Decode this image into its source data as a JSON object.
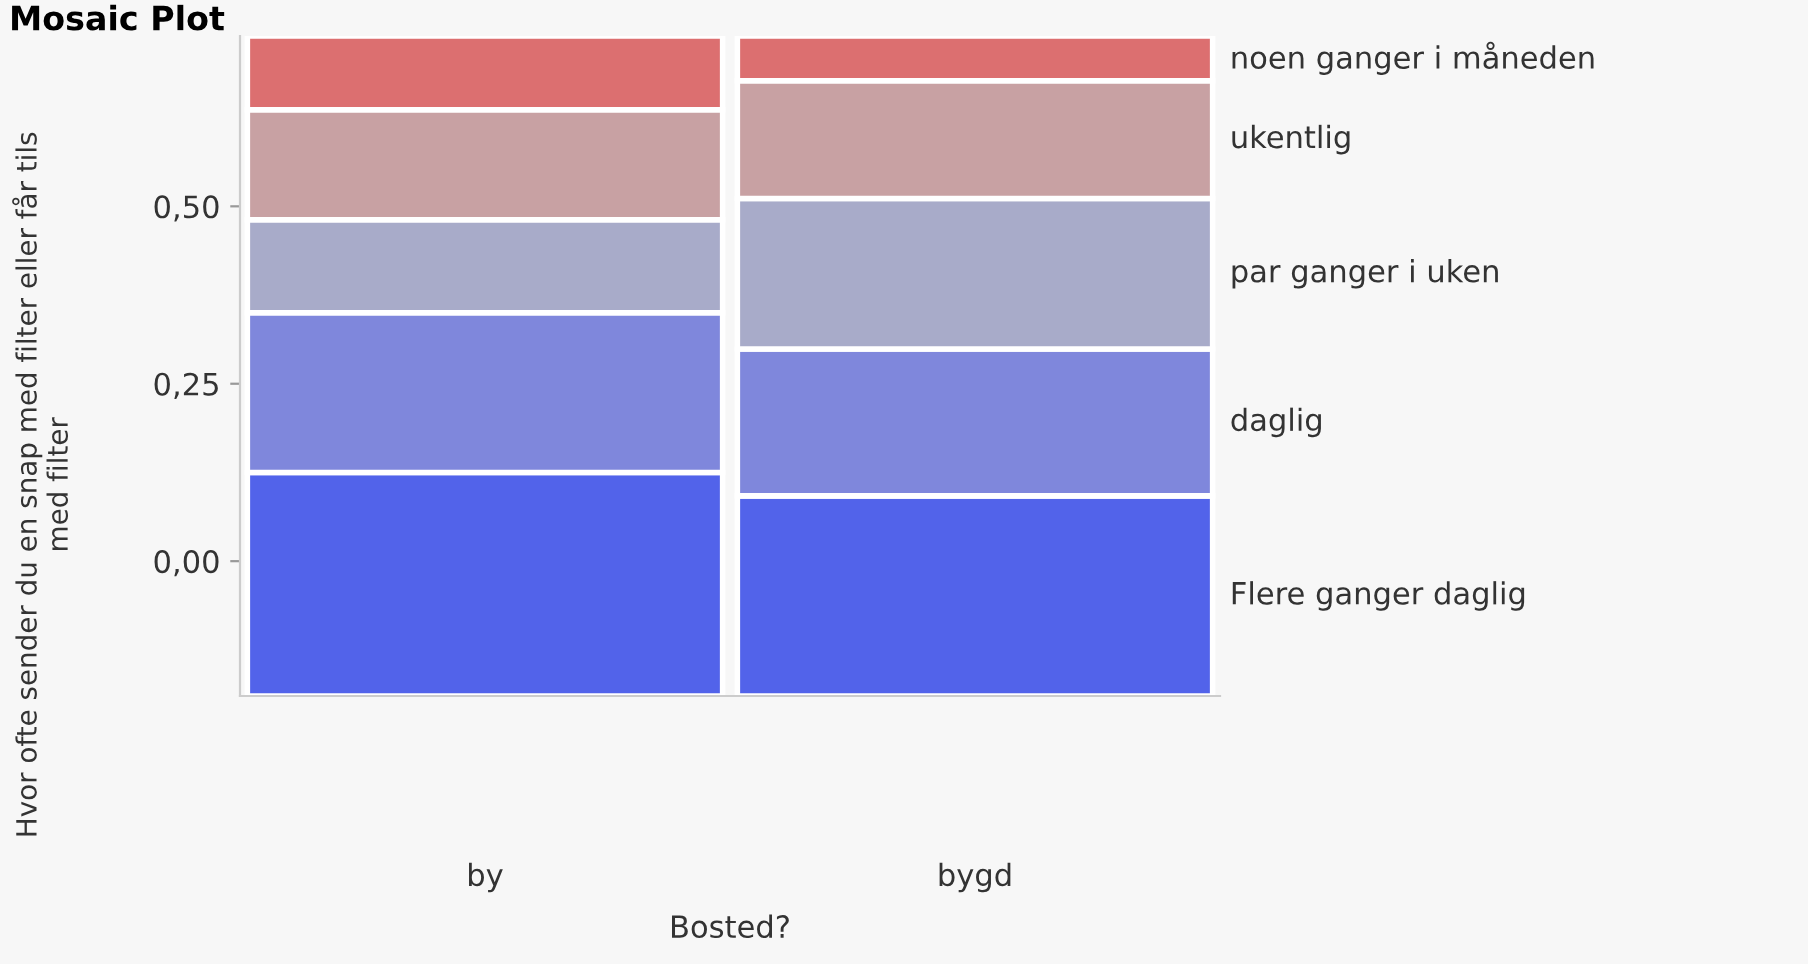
{
  "chart_data": {
    "type": "bar",
    "title": "Mosaic Plot",
    "xlabel": "Bosted?",
    "ylabel": "Hvor ofte sender du en snap med filter eller får tils\nmed filter",
    "categories": [
      "by",
      "bygd"
    ],
    "series": [
      {
        "name": "Flere ganger daglig",
        "color": "#5263ea",
        "base": [
          -0.19,
          -0.19
        ],
        "values": [
          0.315,
          0.282
        ]
      },
      {
        "name": "daglig",
        "color": "#7f87dc",
        "base": [
          0.125,
          0.092
        ],
        "values": [
          0.225,
          0.207
        ]
      },
      {
        "name": "par ganger i uken",
        "color": "#a8abc9",
        "base": [
          0.35,
          0.299
        ],
        "values": [
          0.131,
          0.212
        ]
      },
      {
        "name": "ukentlig",
        "color": "#c8a1a3",
        "base": [
          0.481,
          0.511
        ],
        "values": [
          0.155,
          0.166
        ]
      },
      {
        "name": "noen ganger i måneden",
        "color": "#dc6f70",
        "base": [
          0.636,
          0.677
        ],
        "values": [
          0.104,
          0.063
        ]
      }
    ],
    "ylim": [
      -0.19,
      0.74
    ],
    "yticks": [
      {
        "value": 0,
        "label": "0,00"
      },
      {
        "value": 0.25,
        "label": "0,25"
      },
      {
        "value": 0.5,
        "label": "0,50"
      }
    ],
    "grid": false
  }
}
